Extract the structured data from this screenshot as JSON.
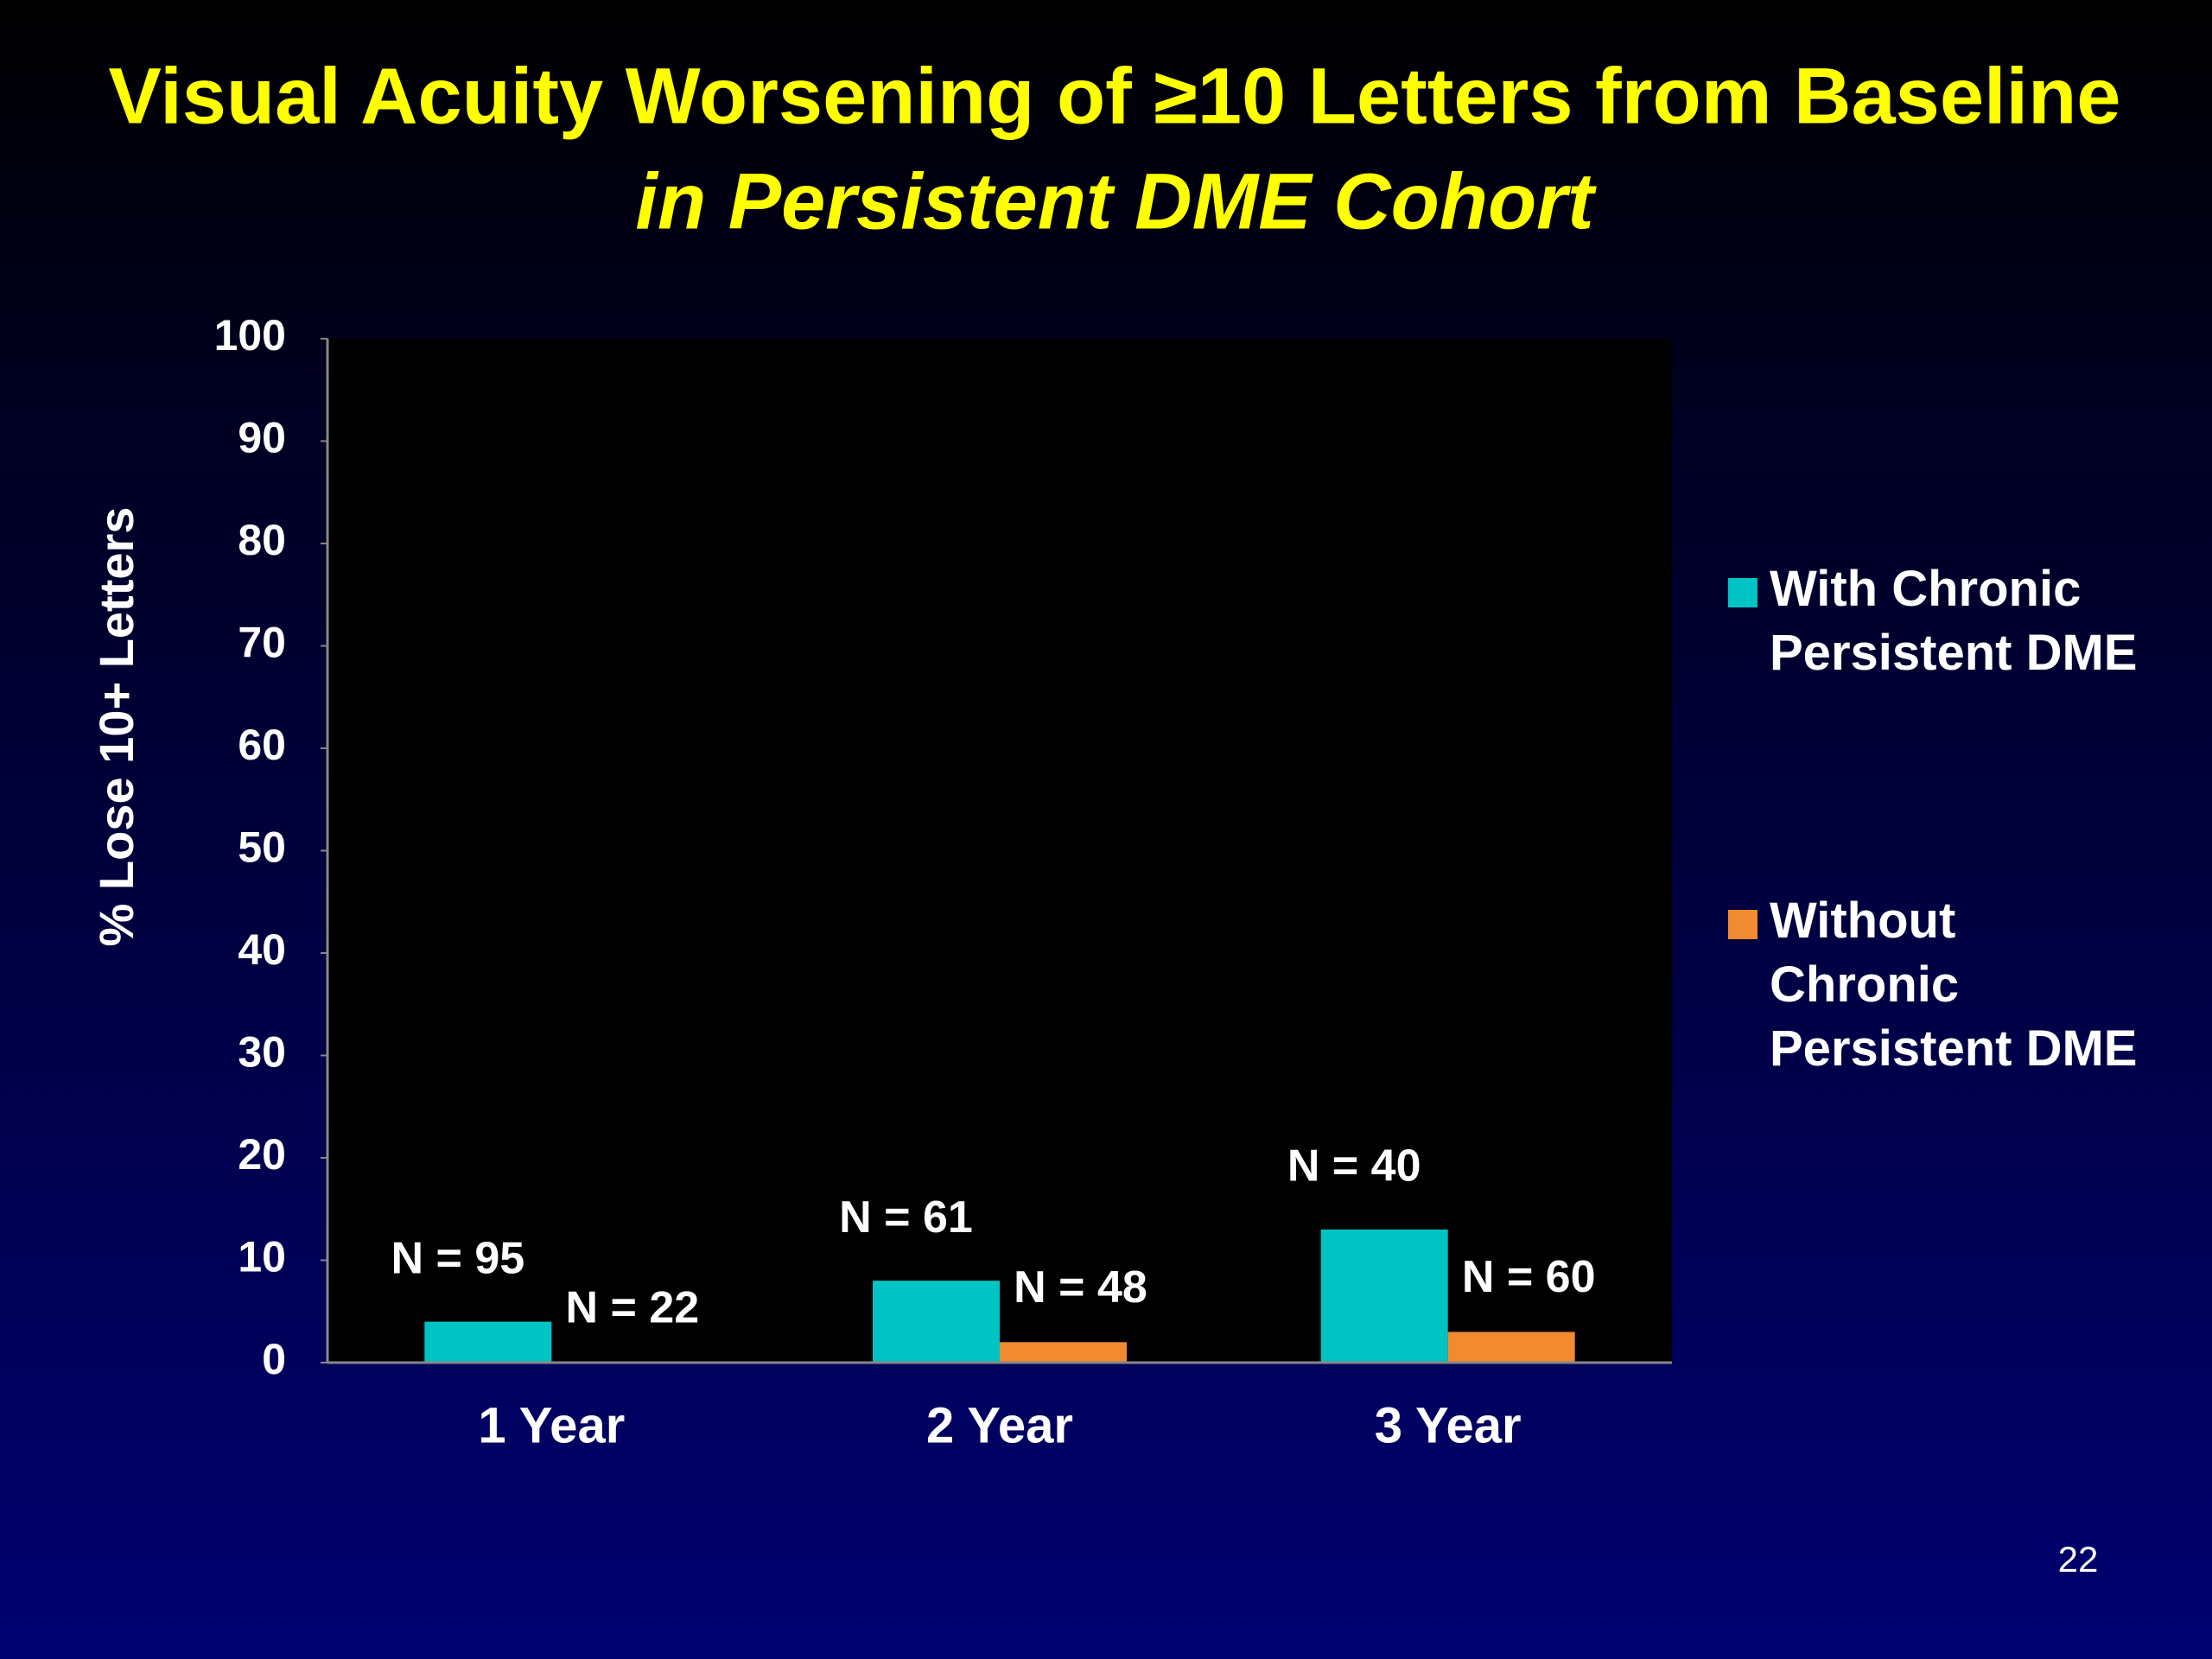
{
  "chart_data": {
    "type": "bar",
    "title": "Visual Acuity Worsening of ≥10 Letters from Baseline",
    "subtitle": "in Persistent DME Cohort",
    "y_label": "% Lose 10+ Letters",
    "categories": [
      "1 Year",
      "2 Year",
      "3 Year"
    ],
    "series": [
      {
        "name": "With Chronic Persistent DME",
        "color": "#00c4c4",
        "values": [
          4,
          8,
          13
        ],
        "n_labels": [
          "N = 95",
          "N = 61",
          "N = 40"
        ]
      },
      {
        "name": "Without Chronic Persistent DME",
        "color": "#f28a30",
        "values": [
          0,
          2,
          3
        ],
        "n_labels": [
          "N = 22",
          "N = 48",
          "N = 60"
        ]
      }
    ],
    "ylim": [
      0,
      100
    ],
    "yticks": [
      0,
      10,
      20,
      30,
      40,
      50,
      60,
      70,
      80,
      90,
      100
    ],
    "grid": false,
    "legend": "right"
  },
  "page_number": "22"
}
